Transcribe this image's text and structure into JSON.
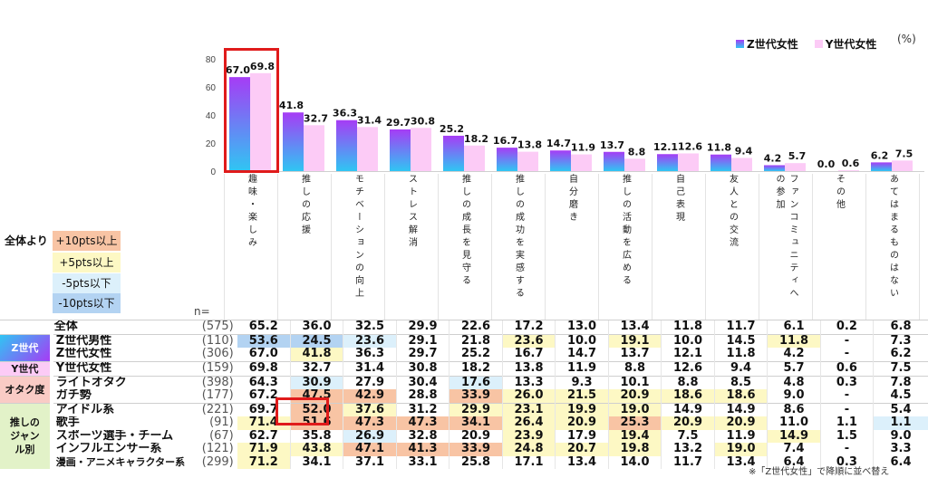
{
  "chart_data": {
    "type": "bar",
    "unit_label": "(%)",
    "ylim": [
      0,
      80
    ],
    "yticks": [
      "0",
      "20",
      "40",
      "60",
      "80"
    ],
    "categories": [
      "趣味・楽しみ",
      "推しの応援",
      "モチベーションの向上",
      "ストレス解消",
      "推しの成長を見守る",
      "推しの成功を実感する",
      "自分磨き",
      "推しの活動を広める",
      "自己表現",
      "友人との交流",
      "ファンコミュニティへの参加",
      "その他",
      "あてはまるものはない"
    ],
    "category_lines": [
      [
        "趣味・楽しみ"
      ],
      [
        "推しの応援"
      ],
      [
        "モチベーションの向上"
      ],
      [
        "ストレス解消"
      ],
      [
        "推しの成長を見守る"
      ],
      [
        "推しの成功を実感する"
      ],
      [
        "自分磨き"
      ],
      [
        "推しの活動を広める"
      ],
      [
        "自己表現"
      ],
      [
        "友人との交流"
      ],
      [
        "ファンコミュニティへ",
        "の参加"
      ],
      [
        "その他"
      ],
      [
        "あてはまるものはない"
      ]
    ],
    "series": [
      {
        "name": "Z世代女性",
        "values": [
          67.0,
          41.8,
          36.3,
          29.7,
          25.2,
          16.7,
          14.7,
          13.7,
          12.1,
          11.8,
          4.2,
          0.0,
          6.2
        ],
        "labels": [
          "67.0",
          "41.8",
          "36.3",
          "29.7",
          "25.2",
          "16.7",
          "14.7",
          "13.7",
          "12.1",
          "11.8",
          "4.2",
          "0.0",
          "6.2"
        ],
        "color_top": "#a63cf5",
        "color_bottom": "#2fc6f3"
      },
      {
        "name": "Y世代女性",
        "values": [
          69.8,
          32.7,
          31.4,
          30.8,
          18.2,
          13.8,
          11.9,
          8.8,
          12.6,
          9.4,
          5.7,
          0.6,
          7.5
        ],
        "labels": [
          "69.8",
          "32.7",
          "31.4",
          "30.8",
          "18.2",
          "13.8",
          "11.9",
          "8.8",
          "12.6",
          "9.4",
          "5.7",
          "0.6",
          "7.5"
        ],
        "color": "#fccbf6"
      }
    ],
    "highlight_category": "趣味・楽しみ"
  },
  "legend_key": {
    "title": "全体より",
    "items": [
      {
        "label": "+10pts以上",
        "color": "#f8c4a4"
      },
      {
        "label": "+5pts以上",
        "color": "#fdf8c4"
      },
      {
        "label": "-5pts以下",
        "color": "#dcf0fb"
      },
      {
        "label": "-10pts以下",
        "color": "#b3d3f2"
      }
    ]
  },
  "table": {
    "n_label": "n=",
    "rows": [
      {
        "group": "",
        "label": "全体",
        "n": "(575)",
        "values": [
          "65.2",
          "36.0",
          "32.5",
          "29.9",
          "22.6",
          "17.2",
          "13.0",
          "13.4",
          "11.8",
          "11.7",
          "6.1",
          "0.2",
          "6.8"
        ],
        "marks": [
          "",
          "",
          "",
          "",
          "",
          "",
          "",
          "",
          "",
          "",
          "",
          "",
          ""
        ]
      },
      {
        "group": "Z世代",
        "label": "Z世代男性",
        "n": "(110)",
        "values": [
          "53.6",
          "24.5",
          "23.6",
          "29.1",
          "21.8",
          "23.6",
          "10.0",
          "19.1",
          "10.0",
          "14.5",
          "11.8",
          "-",
          "7.3"
        ],
        "marks": [
          "m10",
          "m10",
          "m5",
          "",
          "",
          "p5",
          "",
          "p5",
          "",
          "",
          "p5",
          "",
          ""
        ]
      },
      {
        "group": "Z世代",
        "label": "Z世代女性",
        "n": "(306)",
        "values": [
          "67.0",
          "41.8",
          "36.3",
          "29.7",
          "25.2",
          "16.7",
          "14.7",
          "13.7",
          "12.1",
          "11.8",
          "4.2",
          "-",
          "6.2"
        ],
        "marks": [
          "",
          "p5",
          "",
          "",
          "",
          "",
          "",
          "",
          "",
          "",
          "",
          "",
          ""
        ]
      },
      {
        "group": "Y世代",
        "label": "Y世代女性",
        "n": "(159)",
        "values": [
          "69.8",
          "32.7",
          "31.4",
          "30.8",
          "18.2",
          "13.8",
          "11.9",
          "8.8",
          "12.6",
          "9.4",
          "5.7",
          "0.6",
          "7.5"
        ],
        "marks": [
          "",
          "",
          "",
          "",
          "",
          "",
          "",
          "",
          "",
          "",
          "",
          "",
          ""
        ]
      },
      {
        "group": "オタク度",
        "label": "ライトオタク",
        "n": "(398)",
        "values": [
          "64.3",
          "30.9",
          "27.9",
          "30.4",
          "17.6",
          "13.3",
          "9.3",
          "10.1",
          "8.8",
          "8.5",
          "4.8",
          "0.3",
          "7.8"
        ],
        "marks": [
          "",
          "m5",
          "",
          "",
          "m5",
          "",
          "",
          "",
          "",
          "",
          "",
          "",
          ""
        ]
      },
      {
        "group": "オタク度",
        "label": "ガチ勢",
        "n": "(177)",
        "values": [
          "67.2",
          "47.5",
          "42.9",
          "28.8",
          "33.9",
          "26.0",
          "21.5",
          "20.9",
          "18.6",
          "18.6",
          "9.0",
          "-",
          "4.5"
        ],
        "marks": [
          "",
          "p10",
          "p10",
          "",
          "p10",
          "p5",
          "p5",
          "p5",
          "p5",
          "p5",
          "",
          "",
          ""
        ]
      },
      {
        "group": "推しのジャンル別",
        "label": "アイドル系",
        "n": "(221)",
        "values": [
          "69.7",
          "52.0",
          "37.6",
          "31.2",
          "29.9",
          "23.1",
          "19.9",
          "19.0",
          "14.9",
          "14.9",
          "8.6",
          "-",
          "5.4"
        ],
        "marks": [
          "",
          "p10",
          "p5",
          "",
          "p5",
          "p5",
          "p5",
          "p5",
          "",
          "",
          "",
          "",
          ""
        ]
      },
      {
        "group": "推しのジャンル別",
        "label": "歌手",
        "n": "(91)",
        "values": [
          "71.4",
          "51.6",
          "47.3",
          "47.3",
          "34.1",
          "26.4",
          "20.9",
          "25.3",
          "20.9",
          "20.9",
          "11.0",
          "1.1",
          "1.1"
        ],
        "marks": [
          "p5",
          "p10",
          "p10",
          "p10",
          "p10",
          "p5",
          "p5",
          "p10",
          "p5",
          "p5",
          "",
          "",
          "m5"
        ]
      },
      {
        "group": "推しのジャンル別",
        "label": "スポーツ選手・チーム",
        "n": "(67)",
        "values": [
          "62.7",
          "35.8",
          "26.9",
          "32.8",
          "20.9",
          "23.9",
          "17.9",
          "19.4",
          "7.5",
          "11.9",
          "14.9",
          "1.5",
          "9.0"
        ],
        "marks": [
          "",
          "",
          "m5",
          "",
          "",
          "p5",
          "",
          "p5",
          "",
          "",
          "p5",
          "",
          ""
        ]
      },
      {
        "group": "推しのジャンル別",
        "label": "インフルエンサー系",
        "n": "(121)",
        "values": [
          "71.9",
          "43.8",
          "47.1",
          "41.3",
          "33.9",
          "24.8",
          "20.7",
          "19.8",
          "13.2",
          "19.0",
          "7.4",
          "-",
          "3.3"
        ],
        "marks": [
          "p5",
          "p5",
          "p10",
          "p10",
          "p10",
          "p5",
          "p5",
          "p5",
          "",
          "p5",
          "",
          "",
          ""
        ]
      },
      {
        "group": "推しのジャンル別",
        "label": "漫画・アニメキャラクター系",
        "n": "(299)",
        "values": [
          "71.2",
          "34.1",
          "37.1",
          "33.1",
          "25.8",
          "17.1",
          "13.4",
          "14.0",
          "11.7",
          "13.4",
          "6.4",
          "0.3",
          "6.4"
        ],
        "marks": [
          "p5",
          "",
          "",
          "",
          "",
          "",
          "",
          "",
          "",
          "",
          "",
          "",
          ""
        ]
      }
    ],
    "groups": [
      {
        "label": "Z世代",
        "color_top": "#2fc6f3",
        "color_bottom": "#a63cf5"
      },
      {
        "label": "Y世代",
        "color": "#fccbf6"
      },
      {
        "label": "オタク度",
        "color": "#f9cbc5"
      },
      {
        "label": "推しのジャンル別",
        "lines": [
          "推しの",
          "ジャン",
          "ル別"
        ],
        "color": "#e2f2c8"
      }
    ]
  },
  "footnote": "※「Z世代女性」で降順に並べ替え"
}
